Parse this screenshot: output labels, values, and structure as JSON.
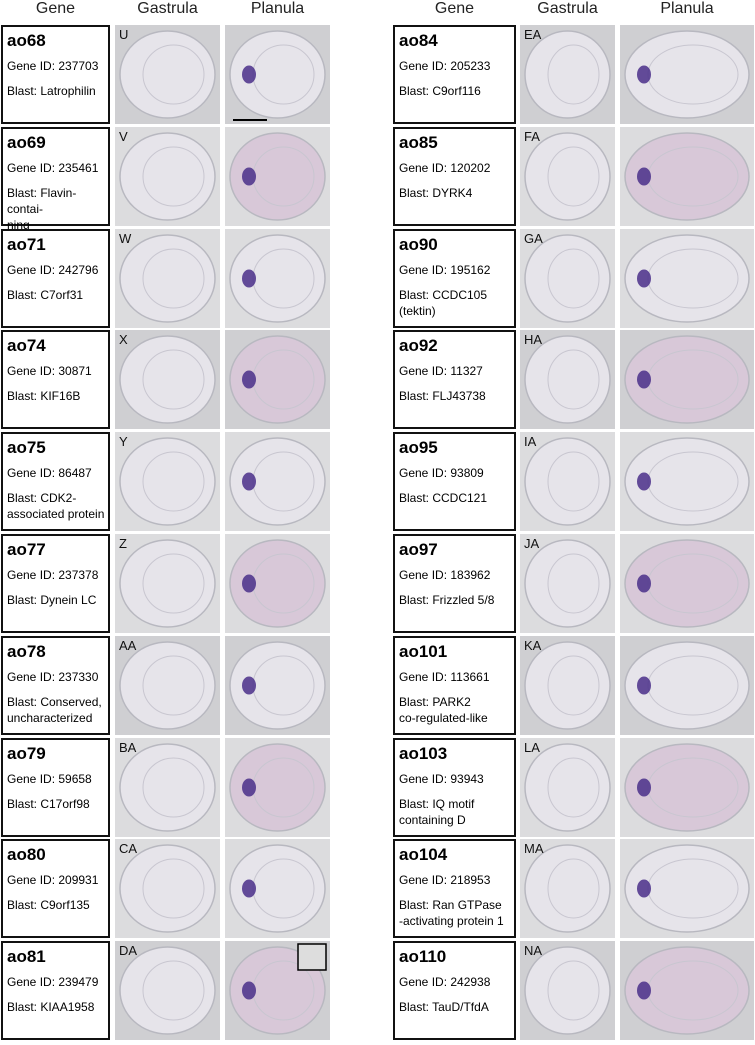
{
  "headers": {
    "left": [
      "Gene",
      "Gastrula",
      "Planula"
    ],
    "right": [
      "Gene",
      "Gastrula",
      "Planula"
    ]
  },
  "left": [
    {
      "gene": "ao68",
      "gene_id": "Gene ID:  237703",
      "blast": [
        "Blast: Latrophilin"
      ],
      "panel": "U"
    },
    {
      "gene": "ao69",
      "gene_id": "Gene ID:  235461",
      "blast": [
        "Blast: Flavin-contai-",
        "ning monooxygenase"
      ],
      "panel": "V"
    },
    {
      "gene": "ao71",
      "gene_id": "Gene ID:  242796",
      "blast": [
        "Blast: C7orf31"
      ],
      "panel": "W"
    },
    {
      "gene": "ao74",
      "gene_id": "Gene ID:  30871",
      "blast": [
        "Blast: KIF16B"
      ],
      "panel": "X"
    },
    {
      "gene": "ao75",
      "gene_id": "Gene ID:  86487",
      "blast": [
        "Blast: CDK2-",
        "associated protein"
      ],
      "panel": "Y"
    },
    {
      "gene": "ao77",
      "gene_id": "Gene ID:  237378",
      "blast": [
        "Blast: Dynein LC"
      ],
      "panel": "Z"
    },
    {
      "gene": "ao78",
      "gene_id": "Gene ID:  237330",
      "blast": [
        "Blast: Conserved,",
        "uncharacterized"
      ],
      "panel": "AA"
    },
    {
      "gene": "ao79",
      "gene_id": "Gene ID:  59658",
      "blast": [
        "Blast: C17orf98"
      ],
      "panel": "BA"
    },
    {
      "gene": "ao80",
      "gene_id": "Gene ID:  209931",
      "blast": [
        "Blast: C9orf135"
      ],
      "panel": "CA"
    },
    {
      "gene": "ao81",
      "gene_id": "Gene ID:  239479",
      "blast": [
        "Blast: KIAA1958"
      ],
      "panel": "DA"
    }
  ],
  "right": [
    {
      "gene": "ao84",
      "gene_id": "Gene ID:  205233",
      "blast": [
        "Blast: C9orf116"
      ],
      "panel": "EA"
    },
    {
      "gene": "ao85",
      "gene_id": "Gene ID:  120202",
      "blast": [
        "Blast: DYRK4"
      ],
      "panel": "FA"
    },
    {
      "gene": "ao90",
      "gene_id": "Gene ID:  195162",
      "blast": [
        "Blast: CCDC105",
        "(tektin)"
      ],
      "panel": "GA"
    },
    {
      "gene": "ao92",
      "gene_id": "Gene ID:  11327",
      "blast": [
        "Blast: FLJ43738"
      ],
      "panel": "HA"
    },
    {
      "gene": "ao95",
      "gene_id": "Gene ID:  93809",
      "blast": [
        "Blast: CCDC121"
      ],
      "panel": "IA"
    },
    {
      "gene": "ao97",
      "gene_id": "Gene ID:  183962",
      "blast": [
        "Blast: Frizzled 5/8"
      ],
      "panel": "JA"
    },
    {
      "gene": "ao101",
      "gene_id": "Gene ID:  113661",
      "blast": [
        "Blast: PARK2",
        "co-regulated-like"
      ],
      "panel": "KA"
    },
    {
      "gene": "ao103",
      "gene_id": "Gene ID:  93943",
      "blast": [
        "Blast: IQ motif",
        "containing D"
      ],
      "panel": "LA"
    },
    {
      "gene": "ao104",
      "gene_id": "Gene ID:  218953",
      "blast": [
        "Blast: Ran GTPase",
        "-activating protein 1"
      ],
      "panel": "MA"
    },
    {
      "gene": "ao110",
      "gene_id": "Gene ID:  242938",
      "blast": [
        "Blast: TauD/TfdA"
      ],
      "panel": "NA"
    }
  ]
}
